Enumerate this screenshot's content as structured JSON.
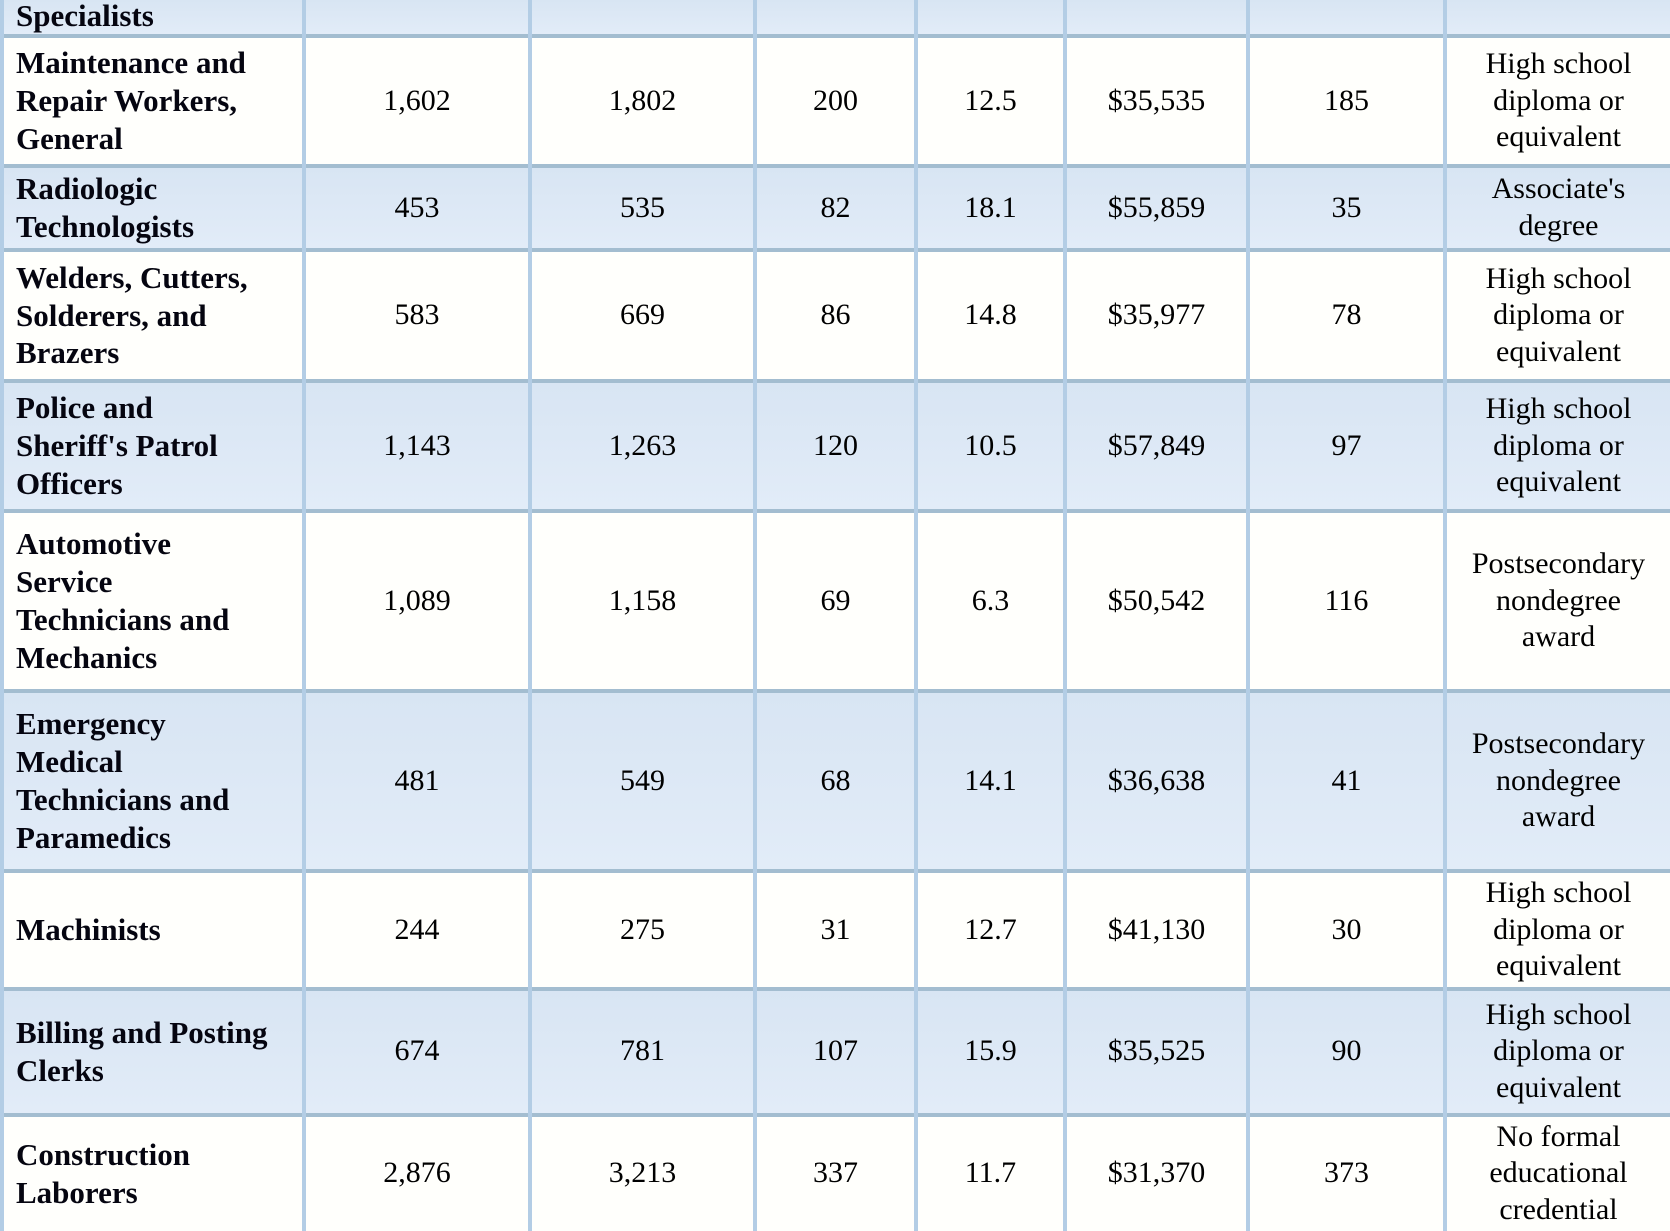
{
  "table": {
    "rows": [
      {
        "cells": [
          "Specialists",
          "",
          "",
          "",
          "",
          "",
          "",
          ""
        ]
      },
      {
        "cells": [
          "Maintenance and\nRepair Workers,\nGeneral",
          "1,602",
          "1,802",
          "200",
          "12.5",
          "$35,535",
          "185",
          "High school\ndiploma or\nequivalent"
        ]
      },
      {
        "cells": [
          "Radiologic\nTechnologists",
          "453",
          "535",
          "82",
          "18.1",
          "$55,859",
          "35",
          "Associate's\ndegree"
        ]
      },
      {
        "cells": [
          "Welders, Cutters,\nSolderers, and\nBrazers",
          "583",
          "669",
          "86",
          "14.8",
          "$35,977",
          "78",
          "High school\ndiploma or\nequivalent"
        ]
      },
      {
        "cells": [
          "Police and\nSheriff's Patrol\nOfficers",
          "1,143",
          "1,263",
          "120",
          "10.5",
          "$57,849",
          "97",
          "High school\ndiploma or\nequivalent"
        ]
      },
      {
        "cells": [
          "Automotive\nService\nTechnicians and\nMechanics",
          "1,089",
          "1,158",
          "69",
          "6.3",
          "$50,542",
          "116",
          "Postsecondary\nnondegree\naward"
        ]
      },
      {
        "cells": [
          "Emergency\nMedical\nTechnicians and\nParamedics",
          "481",
          "549",
          "68",
          "14.1",
          "$36,638",
          "41",
          "Postsecondary\nnondegree\naward"
        ]
      },
      {
        "cells": [
          "Machinists",
          "244",
          "275",
          "31",
          "12.7",
          "$41,130",
          "30",
          "High school\ndiploma or\nequivalent"
        ]
      },
      {
        "cells": [
          "Billing and Posting\nClerks",
          "674",
          "781",
          "107",
          "15.9",
          "$35,525",
          "90",
          "High school\ndiploma or\nequivalent"
        ]
      },
      {
        "cells": [
          "Construction\nLaborers",
          "2,876",
          "3,213",
          "337",
          "11.7",
          "$31,370",
          "373",
          "No formal\neducational\ncredential"
        ]
      },
      {
        "cells": [
          "",
          "",
          "",
          "",
          "",
          "",
          "",
          ""
        ]
      }
    ],
    "colors": {
      "shaded_row": "#dce8f5",
      "plain_row": "#fffffc",
      "vertical_border": "#b3cde5",
      "horizontal_border": "#a3bdd0",
      "text": "#000000"
    }
  }
}
